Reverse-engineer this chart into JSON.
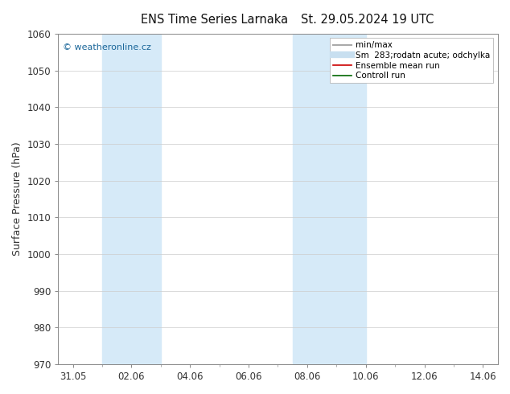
{
  "title_left": "ENS Time Series Larnaka",
  "title_right": "St. 29.05.2024 19 UTC",
  "ylabel": "Surface Pressure (hPa)",
  "ylim": [
    970,
    1060
  ],
  "yticks": [
    970,
    980,
    990,
    1000,
    1010,
    1020,
    1030,
    1040,
    1050,
    1060
  ],
  "xtick_labels": [
    "31.05",
    "02.06",
    "04.06",
    "06.06",
    "08.06",
    "10.06",
    "12.06",
    "14.06"
  ],
  "xtick_positions": [
    0,
    2,
    4,
    6,
    8,
    10,
    12,
    14
  ],
  "xlim": [
    -0.5,
    14.5
  ],
  "shaded_regions": [
    {
      "xstart": 1.0,
      "xend": 3.0,
      "color": "#d6eaf8"
    },
    {
      "xstart": 7.5,
      "xend": 10.0,
      "color": "#d6eaf8"
    }
  ],
  "watermark": "© weatheronline.cz",
  "watermark_color": "#1a6699",
  "legend_entries": [
    {
      "label": "min/max",
      "color": "#aaaaaa",
      "lw": 1.5
    },
    {
      "label": "Sm  283;rodatn acute; odchylka",
      "color": "#c8dff0",
      "lw": 6
    },
    {
      "label": "Ensemble mean run",
      "color": "#cc0000",
      "lw": 1.2
    },
    {
      "label": "Controll run",
      "color": "#006600",
      "lw": 1.2
    }
  ],
  "background_color": "#ffffff",
  "plot_bg_color": "#ffffff",
  "grid_color": "#cccccc",
  "spine_color": "#888888",
  "tick_color": "#333333",
  "title_fontsize": 10.5,
  "label_fontsize": 9,
  "tick_fontsize": 8.5,
  "legend_fontsize": 7.5
}
